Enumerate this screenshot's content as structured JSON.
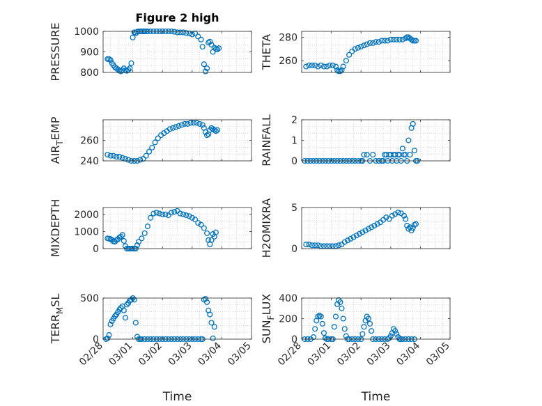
{
  "figure": {
    "title": "Figure 2 high",
    "marker_color": "#0072BD"
  },
  "chart_data": [
    {
      "type": "scatter",
      "ylabel": "PRESSURE",
      "ylim": [
        800,
        1000
      ],
      "yticks": [
        800,
        900,
        1000
      ],
      "xlim": [
        0,
        5
      ],
      "xticklabels": [
        "02/28",
        "03/01",
        "03/02",
        "03/03",
        "03/04",
        "03/05"
      ],
      "xlabel": "",
      "grid": true,
      "title": "Figure 2 high",
      "x": [
        0.15,
        0.2,
        0.25,
        0.3,
        0.35,
        0.4,
        0.45,
        0.5,
        0.55,
        0.6,
        0.65,
        0.7,
        0.75,
        0.8,
        0.85,
        0.9,
        0.95,
        1.0,
        1.05,
        1.1,
        1.15,
        1.2,
        1.25,
        1.3,
        1.35,
        1.4,
        1.45,
        1.5,
        1.6,
        1.7,
        1.8,
        1.9,
        2.0,
        2.1,
        2.2,
        2.3,
        2.4,
        2.5,
        2.6,
        2.7,
        2.8,
        2.9,
        3.0,
        3.1,
        3.2,
        3.3,
        3.35,
        3.4,
        3.45,
        3.5,
        3.55,
        3.6,
        3.65,
        3.7,
        3.75,
        3.8,
        3.85,
        3.9
      ],
      "y": [
        865,
        865,
        860,
        845,
        835,
        825,
        820,
        815,
        808,
        805,
        810,
        820,
        810,
        808,
        812,
        820,
        845,
        970,
        995,
        990,
        998,
        1000,
        1000,
        1000,
        1000,
        1000,
        1000,
        1000,
        1000,
        1000,
        1000,
        1000,
        1000,
        1000,
        1000,
        1000,
        998,
        995,
        995,
        995,
        992,
        990,
        985,
        990,
        975,
        960,
        925,
        840,
        805,
        820,
        945,
        950,
        935,
        900,
        920,
        915,
        912,
        918
      ]
    },
    {
      "type": "scatter",
      "ylabel": "THETA",
      "ylim": [
        250,
        285
      ],
      "yticks": [
        260,
        280
      ],
      "xlim": [
        0,
        5
      ],
      "xticklabels": [
        "02/28",
        "03/01",
        "03/02",
        "03/03",
        "03/04",
        "03/05"
      ],
      "xlabel": "",
      "grid": true,
      "x": [
        0.15,
        0.25,
        0.35,
        0.45,
        0.55,
        0.65,
        0.75,
        0.85,
        0.95,
        1.05,
        1.15,
        1.2,
        1.25,
        1.3,
        1.35,
        1.4,
        1.5,
        1.6,
        1.7,
        1.8,
        1.9,
        2.0,
        2.1,
        2.2,
        2.3,
        2.4,
        2.5,
        2.6,
        2.7,
        2.8,
        2.9,
        3.0,
        3.1,
        3.2,
        3.3,
        3.4,
        3.5,
        3.55,
        3.6,
        3.65,
        3.7,
        3.75,
        3.8,
        3.85
      ],
      "y": [
        255,
        256,
        256,
        256,
        255,
        256,
        255,
        255,
        256,
        256,
        255,
        252,
        251,
        251,
        252,
        255,
        260,
        265,
        268,
        270,
        271,
        272,
        273,
        274,
        275,
        275,
        276,
        276,
        277,
        277,
        277,
        278,
        278,
        278,
        278,
        278,
        279,
        280,
        280,
        279,
        278,
        277,
        277,
        277
      ]
    },
    {
      "type": "scatter",
      "ylabel": "AIR_TEMP",
      "ylim": [
        240,
        280
      ],
      "yticks": [
        240,
        260
      ],
      "xlim": [
        0,
        5
      ],
      "xticklabels": [
        "02/28",
        "03/01",
        "03/02",
        "03/03",
        "03/04",
        "03/05"
      ],
      "xlabel": "",
      "grid": true,
      "x": [
        0.15,
        0.25,
        0.35,
        0.45,
        0.55,
        0.65,
        0.75,
        0.85,
        0.95,
        1.05,
        1.15,
        1.25,
        1.35,
        1.45,
        1.55,
        1.65,
        1.75,
        1.85,
        1.95,
        2.05,
        2.15,
        2.25,
        2.35,
        2.45,
        2.55,
        2.65,
        2.75,
        2.85,
        2.95,
        3.05,
        3.15,
        3.25,
        3.35,
        3.4,
        3.45,
        3.5,
        3.55,
        3.6,
        3.65,
        3.7,
        3.75,
        3.8,
        3.85
      ],
      "y": [
        246,
        245,
        245,
        244,
        244,
        243,
        242,
        241,
        240,
        240,
        240,
        241,
        242,
        245,
        249,
        253,
        258,
        262,
        265,
        267,
        269,
        271,
        272,
        273,
        274,
        275,
        276,
        276,
        277,
        277,
        277,
        276,
        275,
        272,
        268,
        265,
        266,
        270,
        272,
        271,
        270,
        269,
        270
      ]
    },
    {
      "type": "scatter",
      "ylabel": "RAINFALL",
      "ylim": [
        0,
        2
      ],
      "yticks": [
        0,
        1,
        2
      ],
      "xlim": [
        0,
        5
      ],
      "xticklabels": [
        "02/28",
        "03/01",
        "03/02",
        "03/03",
        "03/04",
        "03/05"
      ],
      "xlabel": "",
      "grid": true,
      "x": [
        0.1,
        0.2,
        0.3,
        0.4,
        0.5,
        0.6,
        0.7,
        0.8,
        0.9,
        1.0,
        1.1,
        1.2,
        1.3,
        1.4,
        1.5,
        1.6,
        1.7,
        1.8,
        1.9,
        2.0,
        2.05,
        2.1,
        2.2,
        2.3,
        2.4,
        2.5,
        2.6,
        2.7,
        2.75,
        2.8,
        2.85,
        2.9,
        2.95,
        3.0,
        3.05,
        3.1,
        3.15,
        3.2,
        3.25,
        3.3,
        3.35,
        3.4,
        3.45,
        3.5,
        3.55,
        3.6,
        3.65,
        3.7,
        3.75,
        3.8,
        3.85,
        3.9
      ],
      "y": [
        0,
        0,
        0,
        0,
        0,
        0,
        0,
        0,
        0,
        0,
        0,
        0,
        0,
        0,
        0,
        0,
        0,
        0,
        0,
        0,
        0,
        0.3,
        0.3,
        0,
        0.3,
        0,
        0,
        0,
        0,
        0.3,
        0.3,
        0,
        0.3,
        0.3,
        0,
        0.3,
        0.3,
        0,
        0.3,
        0.3,
        0,
        0.6,
        0.3,
        0.3,
        0,
        1.0,
        0.3,
        1.6,
        1.8,
        0.5,
        0,
        0
      ]
    },
    {
      "type": "scatter",
      "ylabel": "MIXDEPTH",
      "ylim": [
        0,
        2400
      ],
      "yticks": [
        0,
        1000,
        2000
      ],
      "xlim": [
        0,
        5
      ],
      "xticklabels": [
        "02/28",
        "03/01",
        "03/02",
        "03/03",
        "03/04",
        "03/05"
      ],
      "xlabel": "",
      "grid": true,
      "x": [
        0.15,
        0.2,
        0.25,
        0.3,
        0.35,
        0.4,
        0.45,
        0.5,
        0.55,
        0.6,
        0.65,
        0.7,
        0.75,
        0.8,
        0.85,
        0.9,
        0.95,
        1.0,
        1.05,
        1.1,
        1.15,
        1.2,
        1.3,
        1.4,
        1.5,
        1.6,
        1.7,
        1.8,
        1.9,
        2.0,
        2.1,
        2.2,
        2.3,
        2.4,
        2.5,
        2.6,
        2.7,
        2.8,
        2.9,
        3.0,
        3.1,
        3.2,
        3.3,
        3.4,
        3.5,
        3.55,
        3.6,
        3.65,
        3.7,
        3.75,
        3.8
      ],
      "y": [
        600,
        580,
        560,
        500,
        420,
        400,
        500,
        550,
        650,
        700,
        800,
        450,
        150,
        0,
        0,
        0,
        0,
        0,
        0,
        0,
        200,
        400,
        600,
        900,
        1300,
        1800,
        2050,
        2100,
        2050,
        2000,
        2000,
        1950,
        2100,
        2150,
        2200,
        2050,
        2000,
        1950,
        1900,
        1800,
        1700,
        1500,
        1400,
        1200,
        900,
        500,
        250,
        500,
        850,
        700,
        950
      ]
    },
    {
      "type": "scatter",
      "ylabel": "H2OMIXRA",
      "ylim": [
        0,
        5
      ],
      "yticks": [
        0,
        5
      ],
      "xlim": [
        0,
        5
      ],
      "xticklabels": [
        "02/28",
        "03/01",
        "03/02",
        "03/03",
        "03/04",
        "03/05"
      ],
      "xlabel": "",
      "grid": true,
      "x": [
        0.15,
        0.25,
        0.35,
        0.45,
        0.55,
        0.65,
        0.75,
        0.85,
        0.95,
        1.05,
        1.15,
        1.25,
        1.35,
        1.45,
        1.55,
        1.65,
        1.75,
        1.85,
        1.95,
        2.05,
        2.15,
        2.25,
        2.35,
        2.45,
        2.55,
        2.65,
        2.75,
        2.85,
        2.95,
        3.05,
        3.15,
        3.25,
        3.35,
        3.45,
        3.5,
        3.55,
        3.6,
        3.65,
        3.7,
        3.75,
        3.8,
        3.85
      ],
      "y": [
        0.5,
        0.5,
        0.4,
        0.4,
        0.4,
        0.3,
        0.3,
        0.3,
        0.3,
        0.3,
        0.3,
        0.4,
        0.5,
        0.8,
        1.0,
        1.2,
        1.4,
        1.6,
        1.8,
        2.0,
        2.2,
        2.4,
        2.6,
        2.8,
        3.0,
        3.2,
        3.5,
        3.8,
        3.6,
        4.0,
        4.2,
        4.4,
        4.3,
        4.0,
        3.6,
        2.8,
        2.4,
        2.6,
        2.2,
        2.5,
        2.9,
        3.0
      ]
    },
    {
      "type": "scatter",
      "ylabel": "TERR_MSL",
      "ylim": [
        0,
        500
      ],
      "yticks": [
        0,
        500
      ],
      "xlim": [
        0,
        5
      ],
      "xticklabels": [
        "02/28",
        "03/01",
        "03/02",
        "03/03",
        "03/04",
        "03/05"
      ],
      "xlabel": "Time",
      "grid": true,
      "x": [
        0.1,
        0.15,
        0.2,
        0.25,
        0.3,
        0.35,
        0.4,
        0.45,
        0.5,
        0.55,
        0.6,
        0.65,
        0.7,
        0.75,
        0.8,
        0.85,
        0.9,
        0.95,
        1.0,
        1.05,
        1.1,
        1.15,
        1.2,
        1.25,
        1.3,
        1.4,
        1.5,
        1.6,
        1.7,
        1.8,
        1.9,
        2.0,
        2.1,
        2.2,
        2.3,
        2.4,
        2.5,
        2.6,
        2.7,
        2.8,
        2.9,
        3.0,
        3.1,
        3.2,
        3.3,
        3.35,
        3.4,
        3.45,
        3.5,
        3.55,
        3.6,
        3.65,
        3.7,
        3.75
      ],
      "y": [
        0,
        10,
        50,
        180,
        220,
        250,
        280,
        300,
        330,
        360,
        380,
        400,
        350,
        260,
        420,
        440,
        470,
        480,
        500,
        480,
        200,
        30,
        0,
        0,
        0,
        0,
        0,
        0,
        0,
        0,
        0,
        0,
        0,
        0,
        0,
        0,
        0,
        0,
        0,
        0,
        0,
        0,
        0,
        0,
        0,
        0,
        480,
        490,
        450,
        350,
        300,
        200,
        10,
        150
      ]
    },
    {
      "type": "scatter",
      "ylabel": "SUN_FLUX",
      "ylim": [
        0,
        400
      ],
      "yticks": [
        0,
        200,
        400
      ],
      "xlim": [
        0,
        5
      ],
      "xticklabels": [
        "02/28",
        "03/01",
        "03/02",
        "03/03",
        "03/04",
        "03/05"
      ],
      "xlabel": "Time",
      "grid": true,
      "x": [
        0.1,
        0.2,
        0.3,
        0.4,
        0.45,
        0.5,
        0.55,
        0.6,
        0.65,
        0.7,
        0.75,
        0.8,
        0.85,
        0.9,
        1.0,
        1.05,
        1.1,
        1.15,
        1.2,
        1.25,
        1.3,
        1.35,
        1.4,
        1.45,
        1.5,
        1.55,
        1.6,
        1.7,
        1.8,
        1.9,
        2.0,
        2.05,
        2.1,
        2.15,
        2.2,
        2.25,
        2.3,
        2.35,
        2.4,
        2.5,
        2.6,
        2.7,
        2.8,
        2.9,
        2.95,
        3.0,
        3.05,
        3.1,
        3.15,
        3.2,
        3.25,
        3.3,
        3.35,
        3.4,
        3.5,
        3.6,
        3.7,
        3.8
      ],
      "y": [
        0,
        0,
        0,
        20,
        100,
        180,
        220,
        230,
        220,
        150,
        60,
        10,
        0,
        0,
        0,
        0,
        120,
        220,
        340,
        380,
        360,
        300,
        200,
        100,
        30,
        0,
        0,
        0,
        0,
        0,
        0,
        50,
        120,
        180,
        220,
        200,
        150,
        80,
        0,
        0,
        0,
        0,
        0,
        0,
        10,
        30,
        60,
        100,
        80,
        50,
        20,
        0,
        0,
        0,
        0,
        0,
        0,
        0
      ]
    }
  ]
}
